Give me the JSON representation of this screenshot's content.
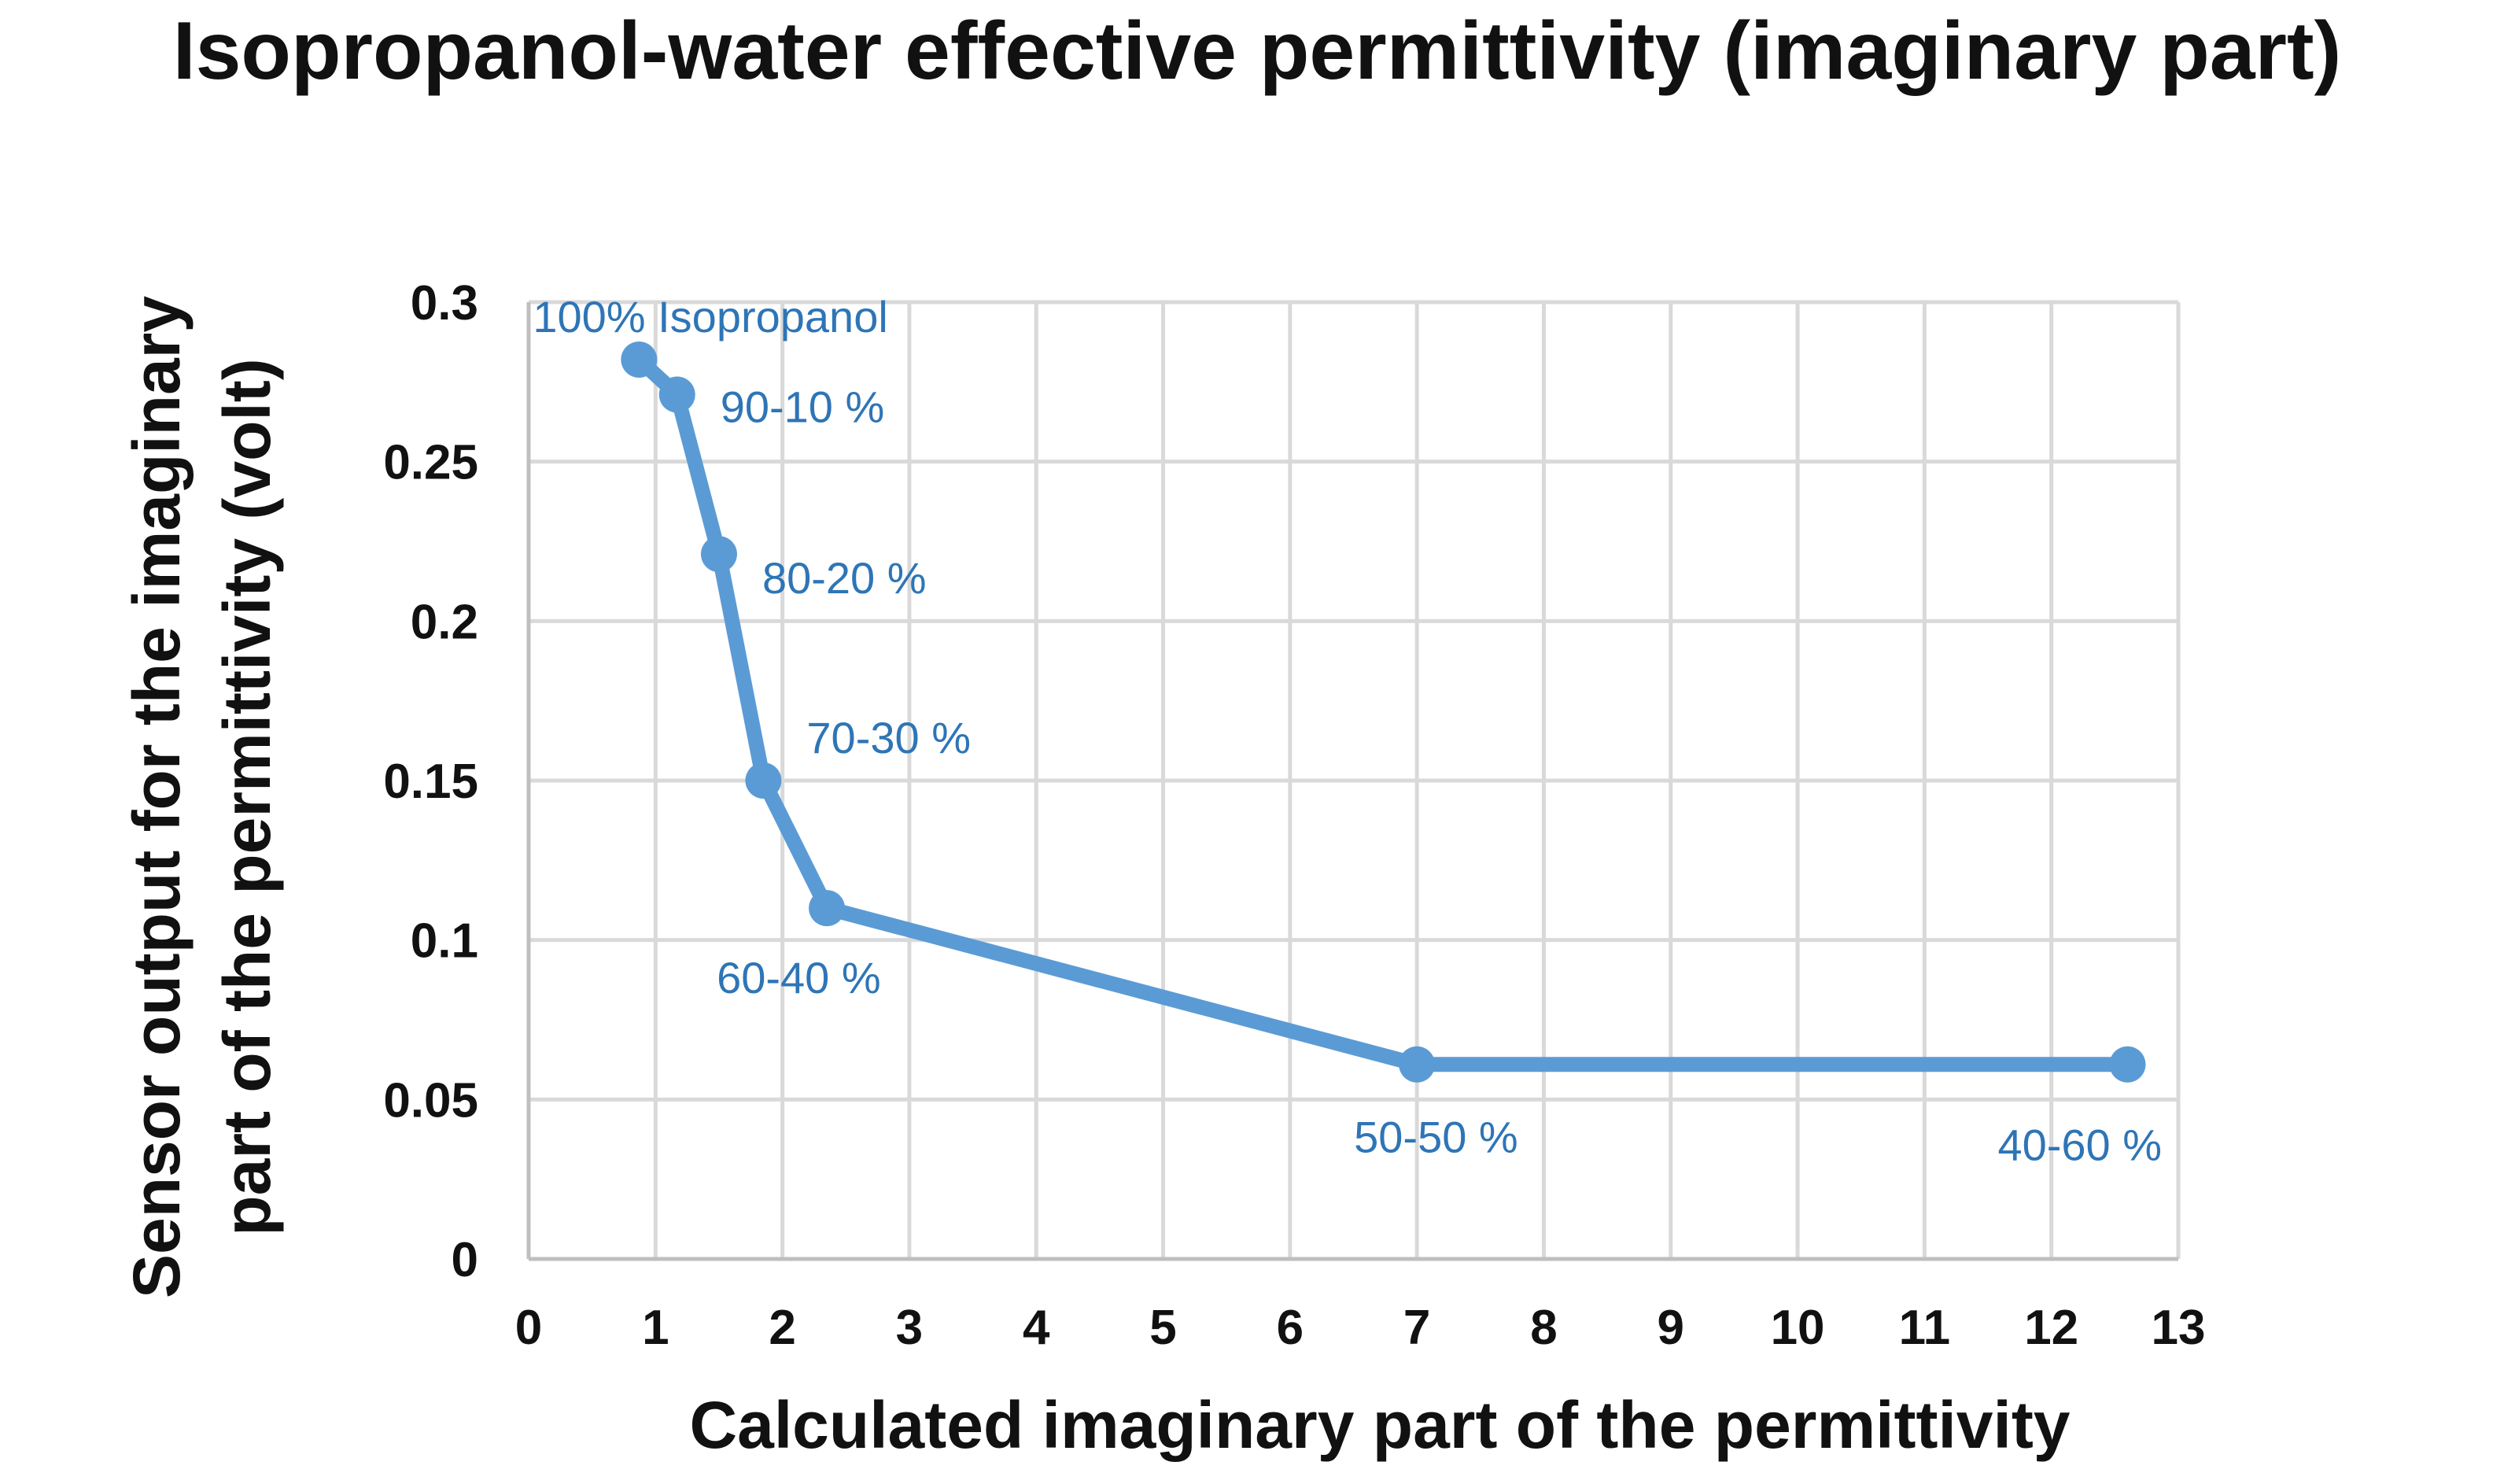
{
  "chart_data": {
    "type": "line",
    "title": "Isopropanol-water effective permittivity (imaginary part)",
    "xlabel": "Calculated imaginary part of the permittivity",
    "ylabel_lines": [
      "Sensor output for the imaginary",
      "part of the permittivity (volt)"
    ],
    "xlim": [
      0,
      13
    ],
    "ylim": [
      0,
      0.3
    ],
    "x_ticks": [
      "0",
      "1",
      "2",
      "3",
      "4",
      "5",
      "6",
      "7",
      "8",
      "9",
      "10",
      "11",
      "12",
      "13"
    ],
    "y_ticks": [
      "0",
      "0.05",
      "0.1",
      "0.15",
      "0.2",
      "0.25",
      "0.3"
    ],
    "grid": true,
    "series": [
      {
        "name": "Isopropanol-water",
        "color": "#5b9bd5",
        "label_color": "#2e75b6",
        "x": [
          0.87,
          1.17,
          1.5,
          1.85,
          2.35,
          7.0,
          12.6
        ],
        "y": [
          0.282,
          0.271,
          0.221,
          0.15,
          0.11,
          0.061,
          0.061
        ],
        "labels": [
          "100% Isopropanol",
          "90-10 %",
          "80-20 %",
          "70-30 %",
          "60-40 %",
          "50-50 %",
          "40-60 %"
        ]
      }
    ]
  }
}
